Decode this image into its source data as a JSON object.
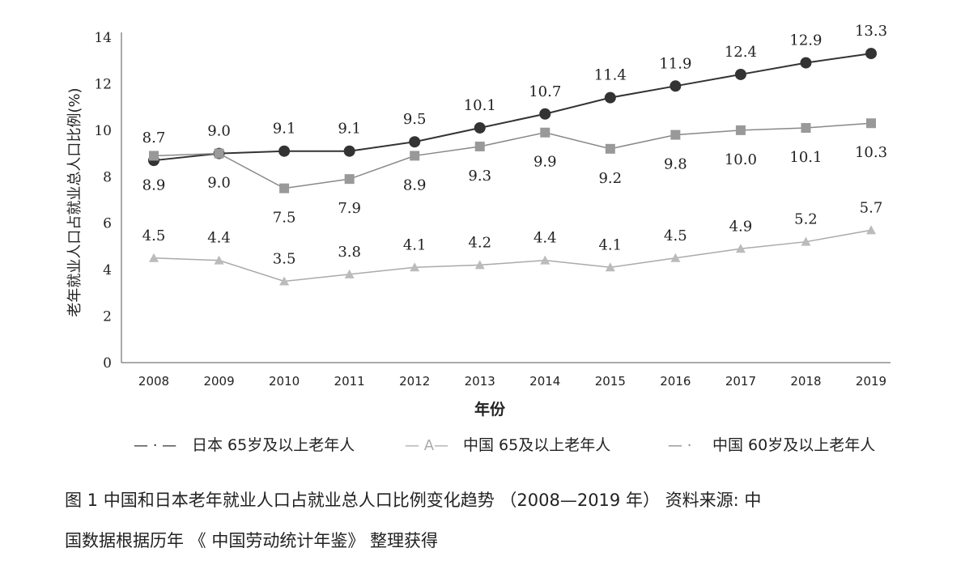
{
  "chart_data": {
    "type": "line",
    "title": "",
    "xlabel": "年份",
    "ylabel": "老年就业人口占就业总人口比例(%)",
    "x": [
      2008,
      2009,
      2010,
      2011,
      2012,
      2013,
      2014,
      2015,
      2016,
      2017,
      2018,
      2019
    ],
    "ylim": [
      0,
      14
    ],
    "yticks": [
      0,
      2,
      4,
      6,
      8,
      10,
      12,
      14
    ],
    "grid": false,
    "legend_position": "bottom",
    "series": [
      {
        "name": "日本 65岁及以上老年人",
        "legend_marker": "— · —",
        "marker": "circle",
        "color": "#333333",
        "values": [
          8.7,
          9.0,
          9.1,
          9.1,
          9.5,
          10.1,
          10.7,
          11.4,
          11.9,
          12.4,
          12.9,
          13.3
        ],
        "label_pos": "above"
      },
      {
        "name": "中国 65及以上老年人",
        "legend_marker": "— A—",
        "marker": "triangle",
        "color": "#aaaaaa",
        "values": [
          4.5,
          4.4,
          3.5,
          3.8,
          4.1,
          4.2,
          4.4,
          4.1,
          4.5,
          4.9,
          5.2,
          5.7
        ],
        "label_pos": "above"
      },
      {
        "name": "中国 60岁及以上老年人",
        "legend_marker": "— ·",
        "marker": "square",
        "color": "#888888",
        "values": [
          8.9,
          9.0,
          7.5,
          7.9,
          8.9,
          9.3,
          9.9,
          9.2,
          9.8,
          10.0,
          10.1,
          10.3
        ],
        "label_pos": "below"
      }
    ]
  },
  "caption": {
    "line1": "图 1 中国和日本老年就业人口占就业总人口比例变化趋势 （2008—2019 年） 资料来源: 中",
    "line2": "国数据根据历年 《 中国劳动统计年鉴》 整理获得"
  }
}
